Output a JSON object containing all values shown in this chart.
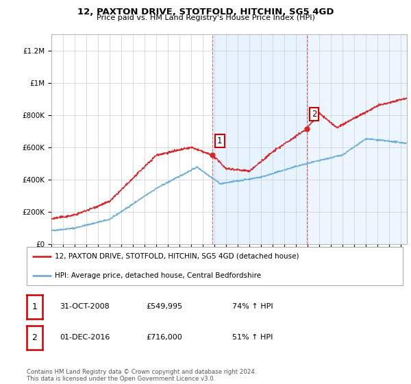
{
  "title": "12, PAXTON DRIVE, STOTFOLD, HITCHIN, SG5 4GD",
  "subtitle": "Price paid vs. HM Land Registry's House Price Index (HPI)",
  "ylim": [
    0,
    1300000
  ],
  "yticks": [
    0,
    200000,
    400000,
    600000,
    800000,
    1000000,
    1200000
  ],
  "ytick_labels": [
    "£0",
    "£200K",
    "£400K",
    "£600K",
    "£800K",
    "£1M",
    "£1.2M"
  ],
  "sale1_x": 2008.83,
  "sale1_y": 549995,
  "sale2_x": 2016.92,
  "sale2_y": 716000,
  "xmin": 1995,
  "xmax": 2025.5,
  "hpi_color": "#6baed6",
  "price_color": "#d62728",
  "shade_color": "#ddeeff",
  "legend_house": "12, PAXTON DRIVE, STOTFOLD, HITCHIN, SG5 4GD (detached house)",
  "legend_hpi": "HPI: Average price, detached house, Central Bedfordshire",
  "table_rows": [
    {
      "num": "1",
      "date": "31-OCT-2008",
      "price": "£549,995",
      "pct": "74% ↑ HPI"
    },
    {
      "num": "2",
      "date": "01-DEC-2016",
      "price": "£716,000",
      "pct": "51% ↑ HPI"
    }
  ],
  "footer": "Contains HM Land Registry data © Crown copyright and database right 2024.\nThis data is licensed under the Open Government Licence v3.0.",
  "background_color": "#ffffff"
}
